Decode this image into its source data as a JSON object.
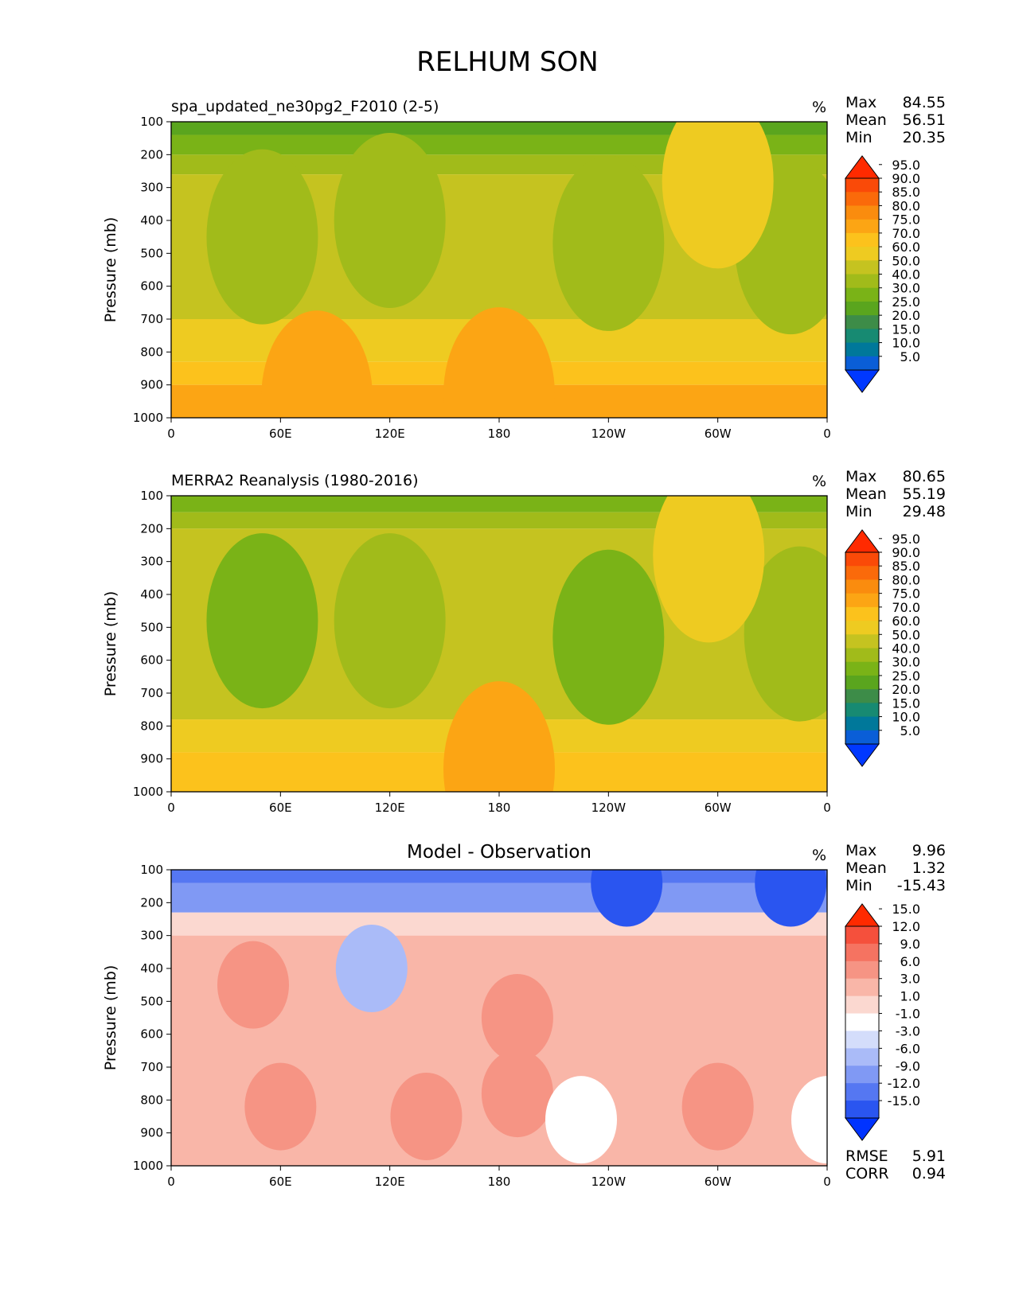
{
  "title": "RELHUM SON",
  "chart_data": [
    {
      "type": "heatmap",
      "title": "spa_updated_ne30pg2_F2010 (2-5)",
      "units": "%",
      "xlabel": "",
      "ylabel": "Pressure (mb)",
      "x_ticks": [
        "0",
        "60E",
        "120E",
        "180",
        "120W",
        "60W",
        "0"
      ],
      "y_ticks": [
        "100",
        "200",
        "300",
        "400",
        "500",
        "600",
        "700",
        "800",
        "900",
        "1000"
      ],
      "ylim": [
        1000,
        100
      ],
      "stats": {
        "max_label": "Max",
        "max": "84.55",
        "mean_label": "Mean",
        "mean": "56.51",
        "min_label": "Min",
        "min": "20.35"
      },
      "colorbar": {
        "levels": [
          "5.0",
          "10.0",
          "15.0",
          "20.0",
          "25.0",
          "30.0",
          "40.0",
          "50.0",
          "60.0",
          "70.0",
          "75.0",
          "80.0",
          "85.0",
          "90.0",
          "95.0"
        ],
        "colors": [
          "#0038ff",
          "#0a5ed7",
          "#00789a",
          "#178a72",
          "#3d8c48",
          "#5aa51e",
          "#7ab317",
          "#a1bb1a",
          "#c5c320",
          "#eecb21",
          "#fcc21c",
          "#fca514",
          "#fa8c0e",
          "#fa6a0a",
          "#fa4a08",
          "#ff2a00"
        ]
      },
      "regions": [
        {
          "lon": 50,
          "p": 450,
          "value": 42
        },
        {
          "lon": 120,
          "p": 400,
          "value": 48
        },
        {
          "lon": 240,
          "p": 470,
          "value": 44
        },
        {
          "lon": 340,
          "p": 480,
          "value": 42
        },
        {
          "lon": 300,
          "p": 280,
          "value": 66
        },
        {
          "lon": 180,
          "p": 930,
          "value": 79
        },
        {
          "lon": 80,
          "p": 940,
          "value": 78
        }
      ]
    },
    {
      "type": "heatmap",
      "title": "MERRA2 Reanalysis (1980-2016)",
      "units": "%",
      "xlabel": "",
      "ylabel": "Pressure (mb)",
      "x_ticks": [
        "0",
        "60E",
        "120E",
        "180",
        "120W",
        "60W",
        "0"
      ],
      "y_ticks": [
        "100",
        "200",
        "300",
        "400",
        "500",
        "600",
        "700",
        "800",
        "900",
        "1000"
      ],
      "ylim": [
        1000,
        100
      ],
      "stats": {
        "max_label": "Max",
        "max": "80.65",
        "mean_label": "Mean",
        "mean": "55.19",
        "min_label": "Min",
        "min": "29.48"
      },
      "colorbar": {
        "levels": [
          "5.0",
          "10.0",
          "15.0",
          "20.0",
          "25.0",
          "30.0",
          "40.0",
          "50.0",
          "60.0",
          "70.0",
          "75.0",
          "80.0",
          "85.0",
          "90.0",
          "95.0"
        ],
        "colors": [
          "#0038ff",
          "#0a5ed7",
          "#00789a",
          "#178a72",
          "#3d8c48",
          "#5aa51e",
          "#7ab317",
          "#a1bb1a",
          "#c5c320",
          "#eecb21",
          "#fcc21c",
          "#fca514",
          "#fa8c0e",
          "#fa6a0a",
          "#fa4a08",
          "#ff2a00"
        ]
      },
      "regions": [
        {
          "lon": 50,
          "p": 480,
          "value": 38
        },
        {
          "lon": 120,
          "p": 480,
          "value": 44
        },
        {
          "lon": 240,
          "p": 530,
          "value": 38
        },
        {
          "lon": 345,
          "p": 520,
          "value": 45
        },
        {
          "lon": 295,
          "p": 280,
          "value": 66
        },
        {
          "lon": 180,
          "p": 930,
          "value": 76
        }
      ]
    },
    {
      "type": "heatmap",
      "title": "Model - Observation",
      "units": "%",
      "xlabel": "",
      "ylabel": "Pressure (mb)",
      "x_ticks": [
        "0",
        "60E",
        "120E",
        "180",
        "120W",
        "60W",
        "0"
      ],
      "y_ticks": [
        "100",
        "200",
        "300",
        "400",
        "500",
        "600",
        "700",
        "800",
        "900",
        "1000"
      ],
      "ylim": [
        1000,
        100
      ],
      "stats": {
        "max_label": "Max",
        "max": "9.96",
        "mean_label": "Mean",
        "mean": "1.32",
        "min_label": "Min",
        "min": "-15.43"
      },
      "extra": {
        "rmse_label": "RMSE",
        "rmse": "5.91",
        "corr_label": "CORR",
        "corr": "0.94"
      },
      "colorbar": {
        "levels": [
          "-15.0",
          "-12.0",
          "-9.0",
          "-6.0",
          "-3.0",
          "-1.0",
          "1.0",
          "3.0",
          "6.0",
          "9.0",
          "12.0",
          "15.0"
        ],
        "colors": [
          "#0033ff",
          "#2a55f0",
          "#5577f2",
          "#8099f4",
          "#aabbf8",
          "#d4ddfb",
          "#ffffff",
          "#fbd8d0",
          "#f9b6a8",
          "#f69484",
          "#f57361",
          "#f5503c",
          "#ff2a00"
        ]
      },
      "regions": [
        {
          "lon": 45,
          "p": 450,
          "value": 7
        },
        {
          "lon": 110,
          "p": 400,
          "value": -4
        },
        {
          "lon": 60,
          "p": 820,
          "value": 7
        },
        {
          "lon": 140,
          "p": 850,
          "value": 7
        },
        {
          "lon": 190,
          "p": 550,
          "value": 7
        },
        {
          "lon": 190,
          "p": 780,
          "value": 7
        },
        {
          "lon": 225,
          "p": 860,
          "value": 0
        },
        {
          "lon": 360,
          "p": 860,
          "value": 0
        },
        {
          "lon": 300,
          "p": 820,
          "value": 7
        },
        {
          "lon": 340,
          "p": 140,
          "value": -13
        },
        {
          "lon": 250,
          "p": 140,
          "value": -13
        }
      ]
    }
  ]
}
